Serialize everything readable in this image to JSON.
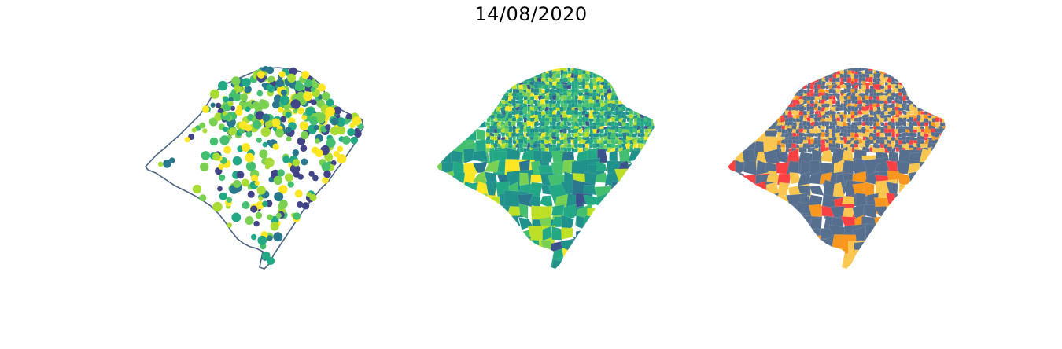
{
  "figure": {
    "title": "14/08/2020"
  },
  "maps": [
    {
      "id": "municipal-points",
      "style": "proportional-points",
      "outline_color": "#4a6382",
      "point_palette": [
        "#2a788e",
        "#22a884",
        "#44bf70",
        "#7ad151",
        "#a8db34",
        "#fde725",
        "#414487"
      ]
    },
    {
      "id": "municipal-choropleth",
      "style": "choropleth",
      "palette": [
        "#21918c",
        "#22a884",
        "#44bf70",
        "#7ad151",
        "#bddf26",
        "#fde725",
        "#3b528b",
        "#2a788e"
      ]
    },
    {
      "id": "municipal-categories",
      "style": "categorical-choropleth",
      "category_colors": [
        "#576f8e",
        "#f9c74f",
        "#f94144",
        "#f8961e"
      ]
    }
  ]
}
